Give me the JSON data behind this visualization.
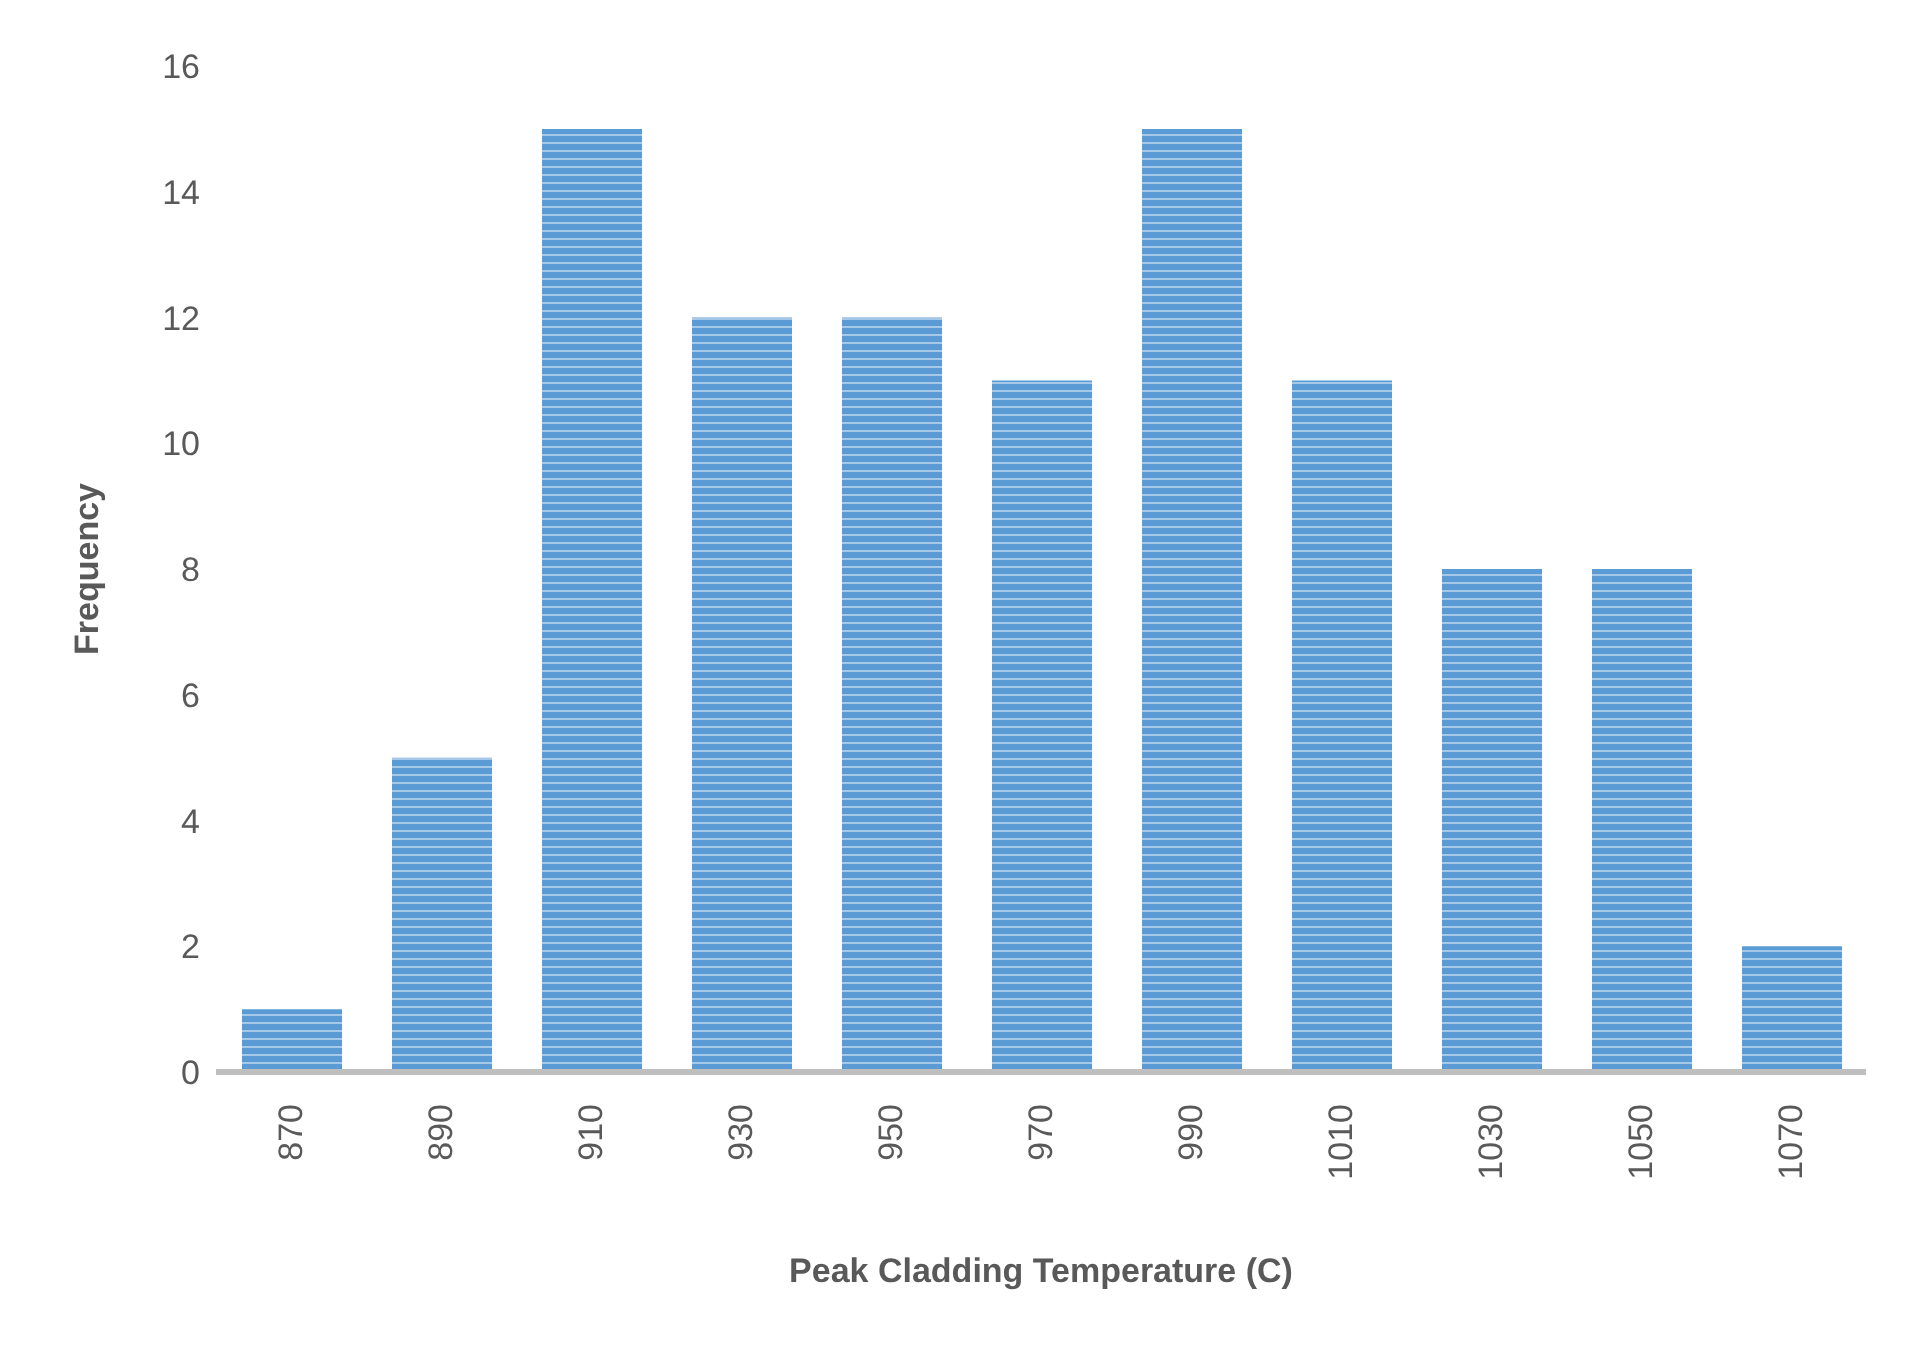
{
  "chart_data": {
    "type": "bar",
    "xlabel": "Peak Cladding Temperature (C)",
    "ylabel": "Frequency",
    "categories": [
      "870",
      "890",
      "910",
      "930",
      "950",
      "970",
      "990",
      "1010",
      "1030",
      "1050",
      "1070"
    ],
    "values": [
      1,
      5,
      15,
      12,
      12,
      11,
      15,
      11,
      8,
      8,
      2
    ],
    "color": "#5b9bd5",
    "ylim": [
      0,
      16
    ],
    "yticks": [
      0,
      2,
      4,
      6,
      8,
      10,
      12,
      14,
      16
    ],
    "grid": false,
    "legend": false
  }
}
